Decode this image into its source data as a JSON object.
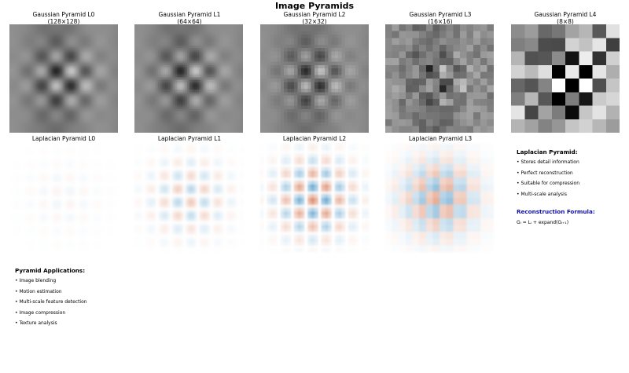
{
  "title": "Image Pyramids",
  "gaussian_panels": [
    {
      "title": "Gaussian Pyramid L0",
      "size": "(128×128)",
      "grid": 128
    },
    {
      "title": "Gaussian Pyramid L1",
      "size": "(64×64)",
      "grid": 64
    },
    {
      "title": "Gaussian Pyramid L2",
      "size": "(32×32)",
      "grid": 32
    },
    {
      "title": "Gaussian Pyramid L3",
      "size": "(16×16)",
      "grid": 16
    },
    {
      "title": "Gaussian Pyramid L4",
      "size": "(8×8)",
      "grid": 8
    }
  ],
  "laplacian_panels": [
    {
      "title": "Laplacian Pyramid L0",
      "grid": 128
    },
    {
      "title": "Laplacian Pyramid L1",
      "grid": 64
    },
    {
      "title": "Laplacian Pyramid L2",
      "grid": 32
    },
    {
      "title": "Laplacian Pyramid L3",
      "grid": 16
    }
  ],
  "laplacian_info": {
    "heading": "Laplacian Pyramid:",
    "items": [
      "Stores detail information",
      "Perfect reconstruction",
      "Suitable for compression",
      "Multi-scale analysis"
    ],
    "formula_heading": "Reconstruction Formula:",
    "formula": "Gᵢ = Lᵢ + expand(Gᵢ₊₁)"
  },
  "applications": {
    "heading": "Pyramid Applications:",
    "items": [
      "Image blending",
      "Motion estimation",
      "Multi-scale feature detection",
      "Image compression",
      "Texture analysis"
    ]
  },
  "colors": {
    "gaussian_colormap": "gray",
    "laplacian_negative": "#2166ac",
    "laplacian_positive": "#b2182b"
  }
}
